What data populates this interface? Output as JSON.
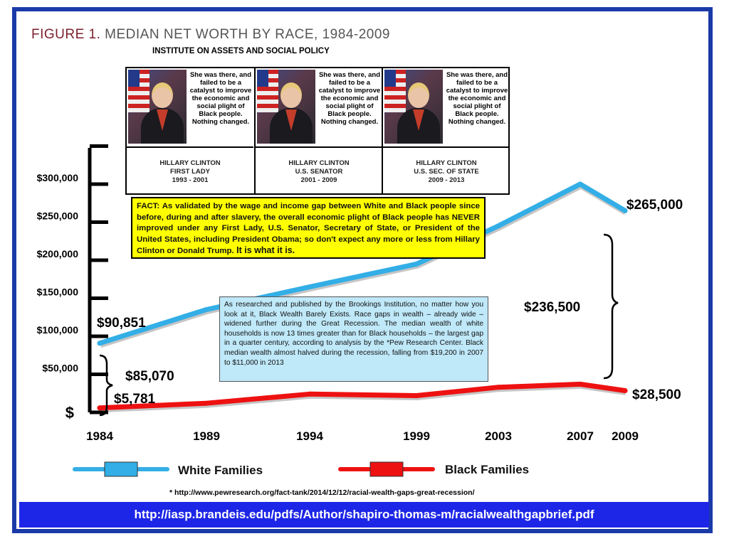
{
  "title": {
    "figure": "FIGURE 1.",
    "text": " MEDIAN NET WORTH BY RACE, 1984-2009"
  },
  "subtitle": "INSTITUTE ON ASSETS AND SOCIAL POLICY",
  "panels": [
    {
      "quote": "She was there, and failed to be a catalyst to improve the economic and social plight of Black people. Nothing changed.",
      "name": "HILLARY CLINTON",
      "role": "FIRST LADY",
      "years": "1993 - 2001"
    },
    {
      "quote": "She was there, and failed to be a catalyst to improve the economic and social plight of Black people. Nothing changed.",
      "name": "HILLARY CLINTON",
      "role": "U.S. SENATOR",
      "years": "2001 - 2009"
    },
    {
      "quote": "She was there, and failed to be a catalyst to improve the economic and social plight of Black people. Nothing changed.",
      "name": "HILLARY CLINTON",
      "role": "U.S. SEC. OF STATE",
      "years": "2009 - 2013"
    }
  ],
  "fact": {
    "lead": "FACT:",
    "body": " As validated by the wage and income gap between White and Black people since before, during and after slavery, the overall economic plight of Black people has NEVER improved under any First Lady, U.S. Senator, Secretary of State, or President of the United States, including President Obama; so don't expect any more or less from Hillary Clinton or Donald Trump.",
    "tail": "  It is what it is."
  },
  "brookings": "As researched and published by the Brookings Institution, no matter how you look at it, Black Wealth Barely Exists. Race gaps in wealth – already wide – widened further during the Great Recession. The median wealth of white households is now 13 times greater than for Black households – the largest gap in a quarter century, according to analysis by the *Pew Research Center. Black median wealth almost halved during the recession, falling from $19,200 in 2007 to $11,000 in 2013",
  "annotations": {
    "white_start": "$90,851",
    "black_start": "$5,781",
    "gap_start": "$85,070",
    "white_end": "$265,000",
    "black_end": "$28,500",
    "gap_end": "$236,500"
  },
  "legend": {
    "white": "White Families",
    "black": "Black Families"
  },
  "footnote": "* http://www.pewresearch.org/fact-tank/2014/12/12/racial-wealth-gaps-great-recession/",
  "url": "http://iasp.brandeis.edu/pdfs/Author/shapiro-thomas-m/racialwealthgapbrief.pdf",
  "colors": {
    "white_line": "#33aee6",
    "black_line": "#ee1111",
    "fact_bg": "#ffff00",
    "brookings_bg": "#bfe8f8",
    "url_bar": "#1d26e6",
    "frame": "#1a3aa8"
  },
  "chart_data": {
    "type": "line",
    "x": [
      "1984",
      "1989",
      "1994",
      "1999",
      "2003",
      "2007",
      "2009"
    ],
    "y_ticks": [
      "$",
      "$50,000",
      "$100,000",
      "$150,000",
      "$200,000",
      "$250,000",
      "$300,000"
    ],
    "ylim": [
      0,
      330000
    ],
    "series": [
      {
        "name": "White Families",
        "values": [
          90851,
          135000,
          165000,
          195000,
          245000,
          300000,
          265000
        ]
      },
      {
        "name": "Black Families",
        "values": [
          5781,
          12000,
          24000,
          22000,
          33000,
          37000,
          28500
        ]
      }
    ],
    "legend_position": "bottom"
  }
}
